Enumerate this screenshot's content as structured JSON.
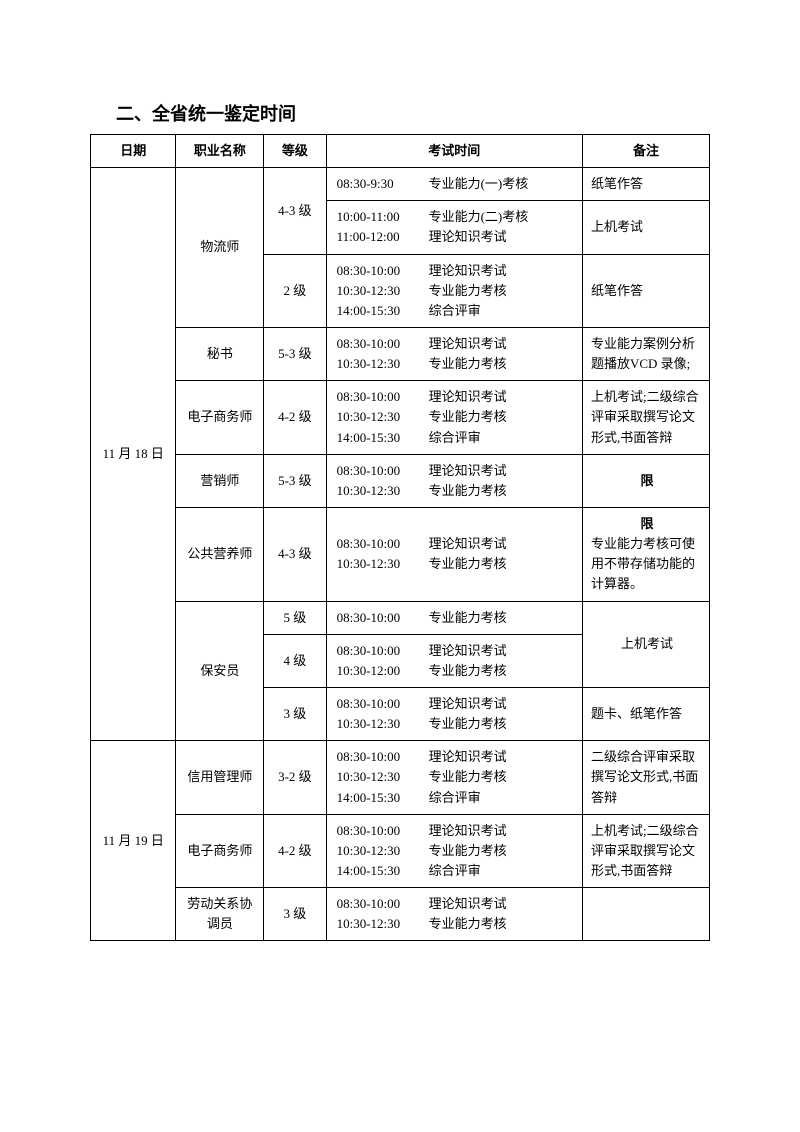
{
  "title": "二、全省统一鉴定时间",
  "headers": {
    "date": "日期",
    "name": "职业名称",
    "level": "等级",
    "time": "考试时间",
    "remark": "备注"
  },
  "dates": {
    "d1": "11 月 18 日",
    "d2": "11 月 19 日"
  },
  "rows": {
    "r1": {
      "name": "物流师",
      "level": "4-3 级",
      "time": "08:30-9:30  专业能力(一)考核",
      "remark": "纸笔作答"
    },
    "r2": {
      "time": "10:00-11:00 专业能力(二)考核\n11:00-12:00   理论知识考试",
      "remark": "上机考试"
    },
    "r3": {
      "level": "2 级",
      "time": "08:30-10:00    理论知识考试\n10:30-12:30    专业能力考核\n14:00-15:30    综合评审",
      "remark": "纸笔作答"
    },
    "r4": {
      "name": "秘书",
      "level": "5-3 级",
      "time": "08:30-10:00    理论知识考试\n10:30-12:30    专业能力考核",
      "remark": "专业能力案例分析题播放VCD 录像;"
    },
    "r5": {
      "name": "电子商务师",
      "level": "4-2 级",
      "time": "08:30-10:00    理论知识考试\n10:30-12:30    专业能力考核\n14:00-15:30    综合评审",
      "remark": "上机考试;二级综合评审采取撰写论文形式,书面答辩"
    },
    "r6": {
      "name": "营销师",
      "level": "5-3 级",
      "time": "08:30-10:00    理论知识考试\n10:30-12:30    专业能力考核",
      "remark": "限"
    },
    "r7": {
      "name": "公共营养师",
      "level": "4-3 级",
      "time": "08:30-10:00    理论知识考试\n10:30-12:30    专业能力考核",
      "remark": "限\n专业能力考核可使用不带存储功能的计算器。"
    },
    "r8": {
      "name": "保安员",
      "level": "5 级",
      "time": "08:30-10:00    专业能力考核",
      "remark": "上机考试"
    },
    "r9": {
      "level": "4 级",
      "time": "08:30-10:00    理论知识考试\n10:30-12:00    专业能力考核"
    },
    "r10": {
      "level": "3 级",
      "time": "08:30-10:00    理论知识考试\n10:30-12:30    专业能力考核",
      "remark": "题卡、纸笔作答"
    },
    "r11": {
      "name": "信用管理师",
      "level": "3-2 级",
      "time": "08:30-10:00    理论知识考试\n10:30-12:30    专业能力考核\n14:00-15:30    综合评审",
      "remark": "二级综合评审采取撰写论文形式,书面答辩"
    },
    "r12": {
      "name": "电子商务师",
      "level": "4-2 级",
      "time": "08:30-10:00    理论知识考试\n10:30-12:30    专业能力考核\n14:00-15:30    综合评审",
      "remark": "上机考试;二级综合评审采取撰写论文形式,书面答辩"
    },
    "r13": {
      "name": "劳动关系协调员",
      "level": "3 级",
      "time": "08:30-10:00    理论知识考试\n10:30-12:30    专业能力考核",
      "remark": ""
    }
  }
}
